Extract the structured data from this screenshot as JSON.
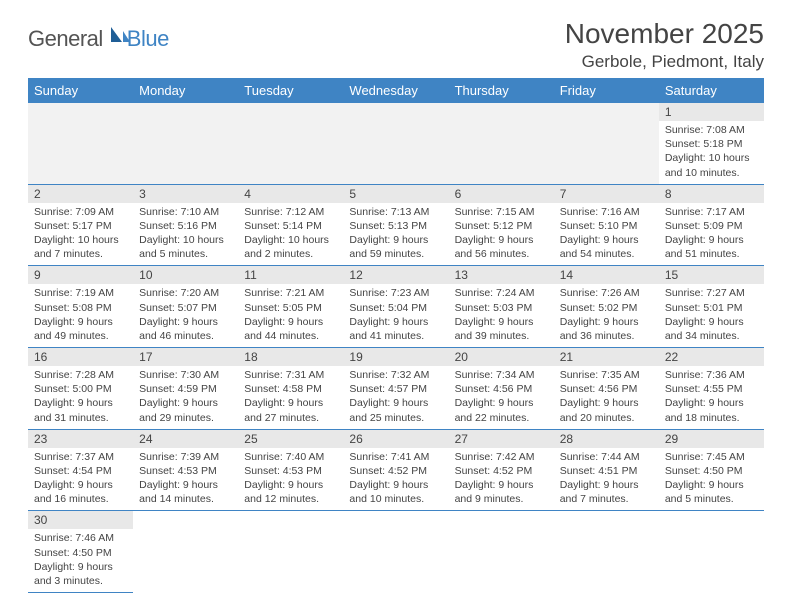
{
  "brand": {
    "word1": "General",
    "word2": "Blue"
  },
  "header": {
    "title": "November 2025",
    "location": "Gerbole, Piedmont, Italy"
  },
  "colors": {
    "accent": "#3f84c4",
    "header_bg": "#3f84c4",
    "daynum_bg": "#e8e8e8",
    "text": "#444444"
  },
  "weekdays": [
    "Sunday",
    "Monday",
    "Tuesday",
    "Wednesday",
    "Thursday",
    "Friday",
    "Saturday"
  ],
  "calendar": {
    "type": "table",
    "lead_empty": 6,
    "days": [
      {
        "n": "1",
        "sunrise": "7:08 AM",
        "sunset": "5:18 PM",
        "daylight": "10 hours and 10 minutes."
      },
      {
        "n": "2",
        "sunrise": "7:09 AM",
        "sunset": "5:17 PM",
        "daylight": "10 hours and 7 minutes."
      },
      {
        "n": "3",
        "sunrise": "7:10 AM",
        "sunset": "5:16 PM",
        "daylight": "10 hours and 5 minutes."
      },
      {
        "n": "4",
        "sunrise": "7:12 AM",
        "sunset": "5:14 PM",
        "daylight": "10 hours and 2 minutes."
      },
      {
        "n": "5",
        "sunrise": "7:13 AM",
        "sunset": "5:13 PM",
        "daylight": "9 hours and 59 minutes."
      },
      {
        "n": "6",
        "sunrise": "7:15 AM",
        "sunset": "5:12 PM",
        "daylight": "9 hours and 56 minutes."
      },
      {
        "n": "7",
        "sunrise": "7:16 AM",
        "sunset": "5:10 PM",
        "daylight": "9 hours and 54 minutes."
      },
      {
        "n": "8",
        "sunrise": "7:17 AM",
        "sunset": "5:09 PM",
        "daylight": "9 hours and 51 minutes."
      },
      {
        "n": "9",
        "sunrise": "7:19 AM",
        "sunset": "5:08 PM",
        "daylight": "9 hours and 49 minutes."
      },
      {
        "n": "10",
        "sunrise": "7:20 AM",
        "sunset": "5:07 PM",
        "daylight": "9 hours and 46 minutes."
      },
      {
        "n": "11",
        "sunrise": "7:21 AM",
        "sunset": "5:05 PM",
        "daylight": "9 hours and 44 minutes."
      },
      {
        "n": "12",
        "sunrise": "7:23 AM",
        "sunset": "5:04 PM",
        "daylight": "9 hours and 41 minutes."
      },
      {
        "n": "13",
        "sunrise": "7:24 AM",
        "sunset": "5:03 PM",
        "daylight": "9 hours and 39 minutes."
      },
      {
        "n": "14",
        "sunrise": "7:26 AM",
        "sunset": "5:02 PM",
        "daylight": "9 hours and 36 minutes."
      },
      {
        "n": "15",
        "sunrise": "7:27 AM",
        "sunset": "5:01 PM",
        "daylight": "9 hours and 34 minutes."
      },
      {
        "n": "16",
        "sunrise": "7:28 AM",
        "sunset": "5:00 PM",
        "daylight": "9 hours and 31 minutes."
      },
      {
        "n": "17",
        "sunrise": "7:30 AM",
        "sunset": "4:59 PM",
        "daylight": "9 hours and 29 minutes."
      },
      {
        "n": "18",
        "sunrise": "7:31 AM",
        "sunset": "4:58 PM",
        "daylight": "9 hours and 27 minutes."
      },
      {
        "n": "19",
        "sunrise": "7:32 AM",
        "sunset": "4:57 PM",
        "daylight": "9 hours and 25 minutes."
      },
      {
        "n": "20",
        "sunrise": "7:34 AM",
        "sunset": "4:56 PM",
        "daylight": "9 hours and 22 minutes."
      },
      {
        "n": "21",
        "sunrise": "7:35 AM",
        "sunset": "4:56 PM",
        "daylight": "9 hours and 20 minutes."
      },
      {
        "n": "22",
        "sunrise": "7:36 AM",
        "sunset": "4:55 PM",
        "daylight": "9 hours and 18 minutes."
      },
      {
        "n": "23",
        "sunrise": "7:37 AM",
        "sunset": "4:54 PM",
        "daylight": "9 hours and 16 minutes."
      },
      {
        "n": "24",
        "sunrise": "7:39 AM",
        "sunset": "4:53 PM",
        "daylight": "9 hours and 14 minutes."
      },
      {
        "n": "25",
        "sunrise": "7:40 AM",
        "sunset": "4:53 PM",
        "daylight": "9 hours and 12 minutes."
      },
      {
        "n": "26",
        "sunrise": "7:41 AM",
        "sunset": "4:52 PM",
        "daylight": "9 hours and 10 minutes."
      },
      {
        "n": "27",
        "sunrise": "7:42 AM",
        "sunset": "4:52 PM",
        "daylight": "9 hours and 9 minutes."
      },
      {
        "n": "28",
        "sunrise": "7:44 AM",
        "sunset": "4:51 PM",
        "daylight": "9 hours and 7 minutes."
      },
      {
        "n": "29",
        "sunrise": "7:45 AM",
        "sunset": "4:50 PM",
        "daylight": "9 hours and 5 minutes."
      },
      {
        "n": "30",
        "sunrise": "7:46 AM",
        "sunset": "4:50 PM",
        "daylight": "9 hours and 3 minutes."
      }
    ],
    "labels": {
      "sunrise": "Sunrise:",
      "sunset": "Sunset:",
      "daylight": "Daylight:"
    }
  }
}
